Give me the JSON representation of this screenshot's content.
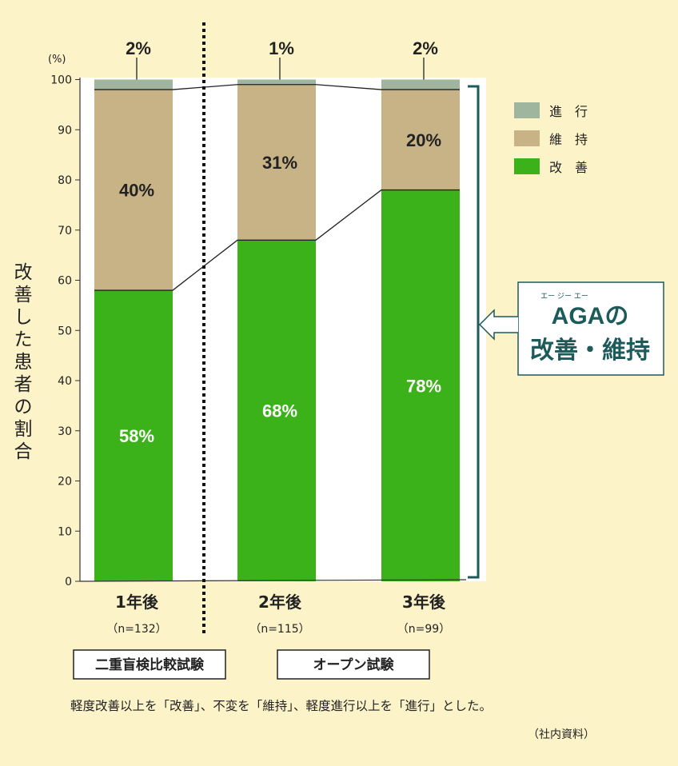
{
  "chart_data": {
    "type": "bar",
    "stacked": true,
    "y_unit_label": "(%)",
    "ylabel": "改善した患者の割合",
    "ylim": [
      0,
      100
    ],
    "yticks": [
      0,
      10,
      20,
      30,
      40,
      50,
      60,
      70,
      80,
      90,
      100
    ],
    "categories": [
      {
        "label": "1年後",
        "n": "（n=132）"
      },
      {
        "label": "2年後",
        "n": "（n=115）"
      },
      {
        "label": "3年後",
        "n": "（n=99）"
      }
    ],
    "series": [
      {
        "name": "改　善",
        "color": "#3cb21a",
        "values": [
          58,
          68,
          78
        ],
        "labels": [
          "58%",
          "68%",
          "78%"
        ]
      },
      {
        "name": "維　持",
        "color": "#c8b387",
        "values": [
          40,
          31,
          20
        ],
        "labels": [
          "40%",
          "31%",
          "20%"
        ]
      },
      {
        "name": "進　行",
        "color": "#9fb59d",
        "values": [
          2,
          1,
          2
        ],
        "labels": [
          "2%",
          "1%",
          "2%"
        ]
      }
    ],
    "legend_position": "top-right",
    "callout": {
      "ruby": "エー ジー エー",
      "line1": "AGAの",
      "line2": "改善・維持"
    },
    "study_labels": [
      "二重盲検比較試験",
      "オープン試験"
    ],
    "footnote": "軽度改善以上を「改善」、不変を「維持」、軽度進行以上を「進行」とした。",
    "source": "（社内資料）",
    "colors": {
      "background": "#fdf3c9",
      "plot_bg": "#ffffff",
      "bracket": "#1d5a5a"
    }
  }
}
